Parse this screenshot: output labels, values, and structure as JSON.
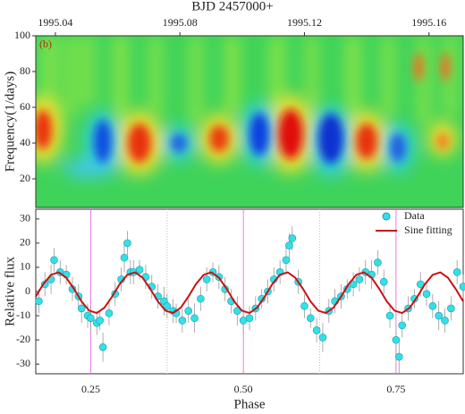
{
  "chart_data": [
    {
      "type": "heatmap",
      "x_label": "BJD 2457000+",
      "panel_label": "(b)",
      "y_label": "Frequency(1/days)",
      "xlim": [
        1995.0337,
        1995.171
      ],
      "xticks": [
        1995.04,
        1995.08,
        1995.12,
        1995.16
      ],
      "ylim": [
        4,
        100
      ],
      "yticks": [
        20,
        40,
        60,
        80,
        100
      ]
    },
    {
      "type": "scatter",
      "x_label": "Phase",
      "y_label": "Relative flux",
      "xlim": [
        0.16,
        0.86
      ],
      "xticks": [
        {
          "value": 0.25,
          "label": "0.25"
        },
        {
          "value": 0.5,
          "label": "0.50"
        },
        {
          "value": 0.75,
          "label": "0.75"
        }
      ],
      "xminor": [
        0.375,
        0.625
      ],
      "ylim": [
        -34,
        34
      ],
      "yticks": [
        -30,
        -20,
        -10,
        0,
        10,
        20,
        30
      ],
      "legend": "upper right",
      "series": [
        {
          "name": "Data",
          "color": "#33e0e8",
          "x": [
            0.165,
            0.175,
            0.185,
            0.19,
            0.2,
            0.21,
            0.22,
            0.23,
            0.235,
            0.245,
            0.25,
            0.26,
            0.265,
            0.27,
            0.28,
            0.29,
            0.3,
            0.305,
            0.31,
            0.315,
            0.32,
            0.33,
            0.34,
            0.35,
            0.36,
            0.37,
            0.375,
            0.385,
            0.39,
            0.4,
            0.41,
            0.42,
            0.43,
            0.44,
            0.45,
            0.46,
            0.47,
            0.48,
            0.49,
            0.5,
            0.51,
            0.52,
            0.53,
            0.54,
            0.55,
            0.56,
            0.57,
            0.575,
            0.58,
            0.59,
            0.6,
            0.61,
            0.62,
            0.63,
            0.64,
            0.65,
            0.66,
            0.67,
            0.68,
            0.69,
            0.7,
            0.71,
            0.72,
            0.73,
            0.74,
            0.75,
            0.755,
            0.76,
            0.77,
            0.78,
            0.79,
            0.8,
            0.81,
            0.82,
            0.83,
            0.84,
            0.85,
            0.86
          ],
          "values": [
            -4,
            3,
            5,
            13,
            8,
            7,
            1,
            -2,
            -7,
            -10,
            -11,
            -13,
            -12,
            -23,
            -9,
            -1,
            5,
            14,
            20,
            8,
            8,
            9,
            6,
            2,
            -2,
            -4,
            -6,
            -8,
            -9,
            -12,
            -8,
            -11,
            -3,
            5,
            8,
            6,
            1,
            -4,
            -8,
            -12,
            -11,
            -7,
            -3,
            0,
            5,
            8,
            13,
            19,
            22,
            4,
            -6,
            -11,
            -16,
            -19,
            -8,
            -4,
            -2,
            1,
            3,
            5,
            8,
            7,
            12,
            4,
            -10,
            -20,
            -27,
            -14,
            -7,
            -3,
            3,
            -1,
            -6,
            -10,
            -12,
            -7,
            8,
            2
          ],
          "errors": [
            5,
            5,
            6,
            5,
            5,
            4,
            5,
            5,
            6,
            5,
            5,
            5,
            4,
            6,
            5,
            5,
            5,
            6,
            5,
            5,
            5,
            4,
            5,
            5,
            5,
            6,
            5,
            5,
            4,
            5,
            5,
            6,
            5,
            5,
            4,
            5,
            5,
            5,
            6,
            5,
            5,
            5,
            4,
            5,
            5,
            5,
            6,
            5,
            5,
            5,
            5,
            4,
            5,
            6,
            5,
            5,
            5,
            4,
            5,
            5,
            5,
            6,
            5,
            5,
            5,
            6,
            7,
            5,
            5,
            4,
            5,
            5,
            5,
            6,
            5,
            5,
            5,
            5
          ]
        },
        {
          "name": "Sine fitting",
          "color": "#cc1010",
          "x": [
            0.16,
            0.1725,
            0.185,
            0.1975,
            0.21,
            0.2225,
            0.235,
            0.2475,
            0.26,
            0.2725,
            0.285,
            0.2975,
            0.31,
            0.3225,
            0.335,
            0.3475,
            0.36,
            0.3725,
            0.385,
            0.3975,
            0.41,
            0.4225,
            0.435,
            0.4475,
            0.46,
            0.4725,
            0.485,
            0.4975,
            0.51,
            0.5225,
            0.535,
            0.5475,
            0.56,
            0.5725,
            0.585,
            0.5975,
            0.61,
            0.6225,
            0.635,
            0.6475,
            0.66,
            0.6725,
            0.685,
            0.6975,
            0.71,
            0.7225,
            0.735,
            0.7475,
            0.76,
            0.7725,
            0.785,
            0.7975,
            0.81,
            0.8225,
            0.835,
            0.8475,
            0.86
          ],
          "values": [
            -2.1,
            3.1,
            6.9,
            7.9,
            5.7,
            1.1,
            -4.1,
            -7.9,
            -8.9,
            -6.7,
            -2.1,
            3.1,
            6.9,
            7.9,
            5.7,
            1.1,
            -4.1,
            -7.9,
            -8.9,
            -6.7,
            -2.1,
            3.1,
            6.9,
            7.9,
            5.7,
            1.1,
            -4.1,
            -7.9,
            -8.9,
            -6.7,
            -2.1,
            3.1,
            6.9,
            7.9,
            5.7,
            1.1,
            -4.1,
            -7.9,
            -8.9,
            -6.7,
            -2.1,
            3.1,
            6.9,
            7.9,
            5.7,
            1.1,
            -4.1,
            -7.9,
            -8.9,
            -6.7,
            -2.1,
            3.1,
            6.9,
            7.9,
            5.7,
            1.1,
            -4.1
          ]
        }
      ]
    }
  ]
}
